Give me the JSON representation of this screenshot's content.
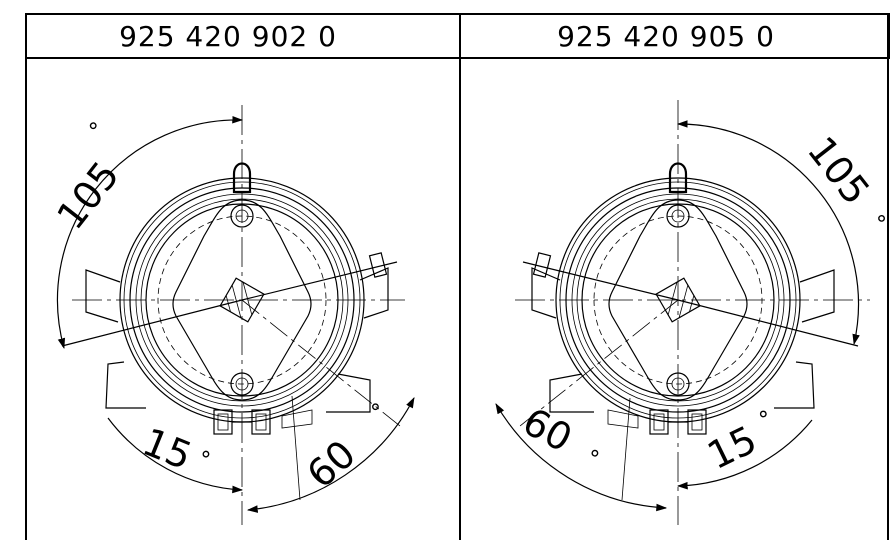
{
  "table": {
    "columns": [
      {
        "part_number": "925 420 902 0"
      },
      {
        "part_number": "925 420 905 0"
      }
    ]
  },
  "left_view": {
    "angle_large": "105",
    "angle_small": "15",
    "angle_medium": "60",
    "degree_symbol": "°"
  },
  "right_view": {
    "angle_large": "105",
    "angle_small": "15",
    "angle_medium": "60",
    "degree_symbol": "°"
  }
}
